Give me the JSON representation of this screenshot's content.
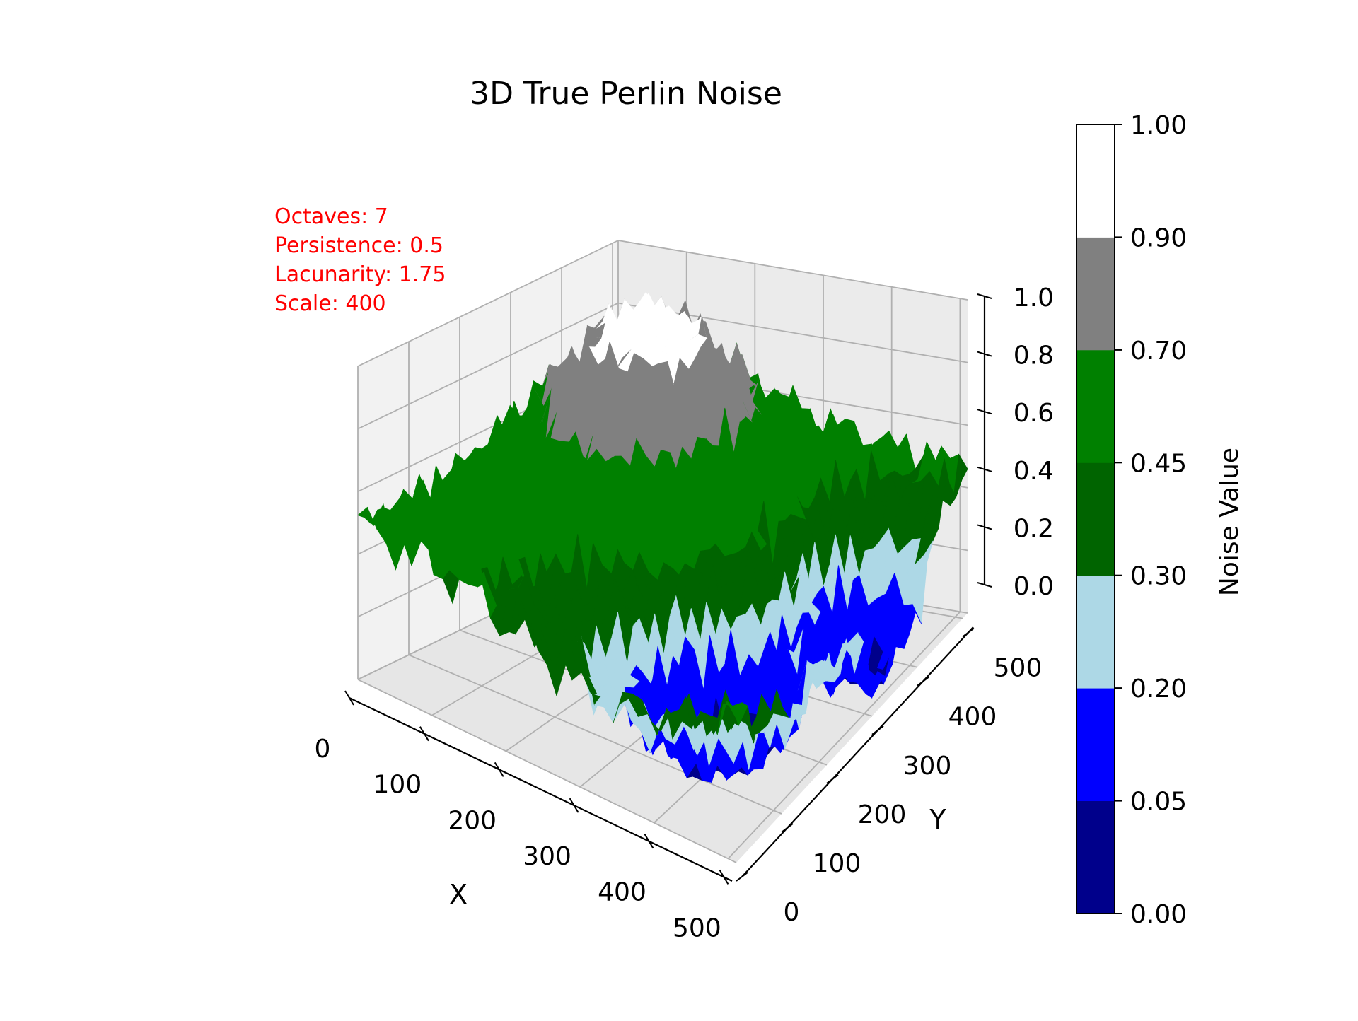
{
  "chart_data": {
    "type": "surface3d",
    "title": "3D True Perlin Noise",
    "xlabel": "X",
    "ylabel": "Y",
    "zlabel": "",
    "xlim": [
      0,
      511
    ],
    "ylim": [
      0,
      511
    ],
    "zlim": [
      0,
      1
    ],
    "x_ticks": [
      "0",
      "100",
      "200",
      "300",
      "400",
      "500"
    ],
    "y_ticks": [
      "0",
      "100",
      "200",
      "300",
      "400",
      "500"
    ],
    "z_ticks": [
      "0.0",
      "0.2",
      "0.4",
      "0.6",
      "0.8",
      "1.0"
    ],
    "grid": true,
    "annotation": [
      "Octaves: 7",
      "Persistence: 0.5",
      "Lacunarity: 1.75",
      "Scale: 400"
    ],
    "annotation_color": "#ff0000",
    "colorbar": {
      "label": "Noise Value",
      "boundaries": [
        0.0,
        0.05,
        0.2,
        0.3,
        0.45,
        0.7,
        0.9,
        1.0
      ],
      "tick_labels": [
        "0.00",
        "0.05",
        "0.20",
        "0.30",
        "0.45",
        "0.70",
        "0.90",
        "1.00"
      ],
      "colors": [
        "#00008b",
        "#0000ff",
        "#add8e6",
        "#006400",
        "#008000",
        "#808080",
        "#ffffff"
      ]
    },
    "noise": {
      "octaves": 7,
      "persistence": 0.5,
      "lacunarity": 1.75,
      "scale": 400
    }
  }
}
